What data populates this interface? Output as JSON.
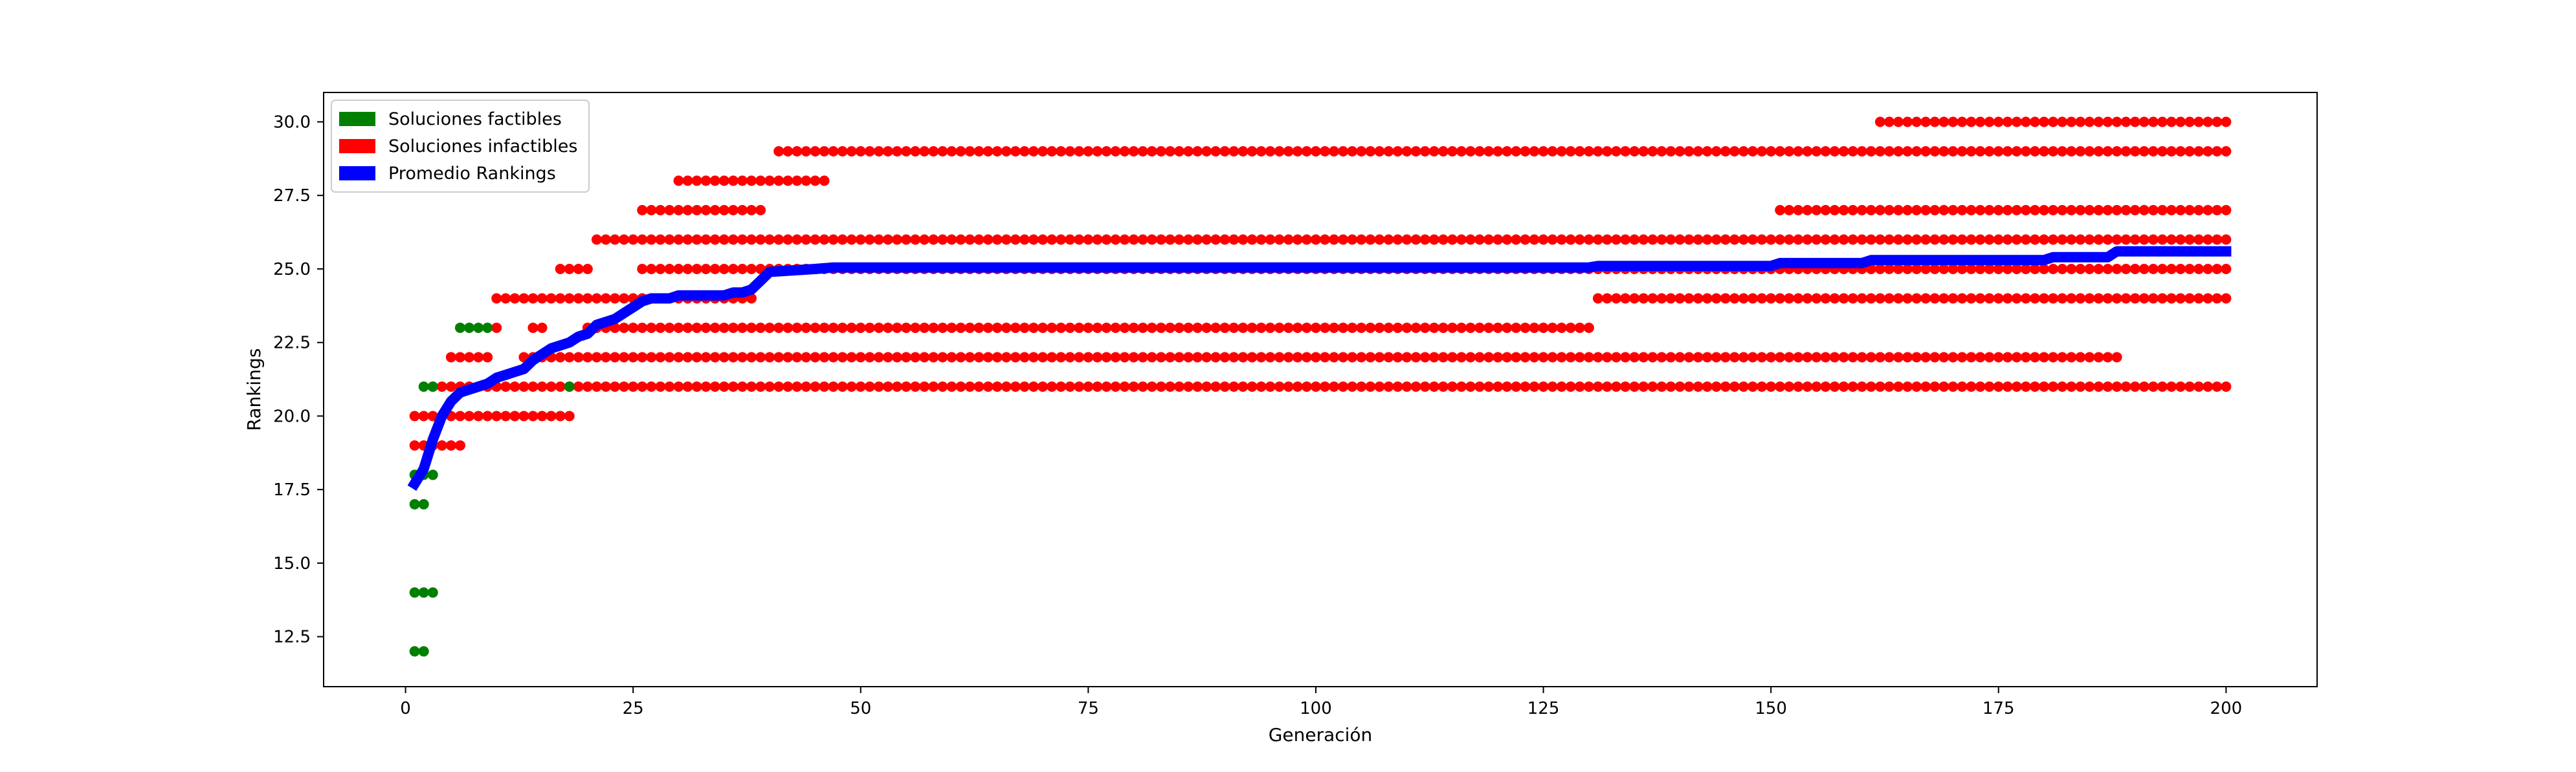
{
  "chart_data": {
    "type": "scatter",
    "xlabel": "Generación",
    "ylabel": "Rankings",
    "xlim": [
      -9,
      210
    ],
    "ylim": [
      10.8,
      31.0
    ],
    "xticks": [
      0,
      25,
      50,
      75,
      100,
      125,
      150,
      175,
      200
    ],
    "yticks": [
      12.5,
      15.0,
      17.5,
      20.0,
      22.5,
      25.0,
      27.5,
      30.0
    ],
    "grid": false,
    "legend_position": "top-left",
    "legend": [
      {
        "label": "Soluciones factibles",
        "color": "#008000"
      },
      {
        "label": "Soluciones infactibles",
        "color": "#ff0000"
      },
      {
        "label": "Promedio Rankings",
        "color": "#0000ff"
      }
    ],
    "series": [
      {
        "name": "Soluciones factibles",
        "color": "#008000",
        "points": [
          [
            1,
            12
          ],
          [
            2,
            12
          ],
          [
            1,
            14
          ],
          [
            2,
            14
          ],
          [
            3,
            14
          ],
          [
            1,
            17
          ],
          [
            2,
            17
          ],
          [
            1,
            18
          ],
          [
            2,
            18
          ],
          [
            3,
            18
          ],
          [
            2,
            21
          ],
          [
            3,
            21
          ],
          [
            18,
            21
          ],
          [
            6,
            23
          ],
          [
            7,
            23
          ],
          [
            8,
            23
          ],
          [
            9,
            23
          ]
        ]
      },
      {
        "name": "Soluciones infactibles",
        "color": "#ff0000",
        "ranges": [
          {
            "y": 19,
            "x_start": 1,
            "x_end": 6
          },
          {
            "y": 20,
            "x_start": 1,
            "x_end": 18
          },
          {
            "y": 21,
            "x_start": 3,
            "x_end": 200
          },
          {
            "y": 22,
            "x_start": 5,
            "x_end": 9
          },
          {
            "y": 22,
            "x_start": 13,
            "x_end": 188
          },
          {
            "y": 23,
            "x_start": 10,
            "x_end": 10
          },
          {
            "y": 23,
            "x_start": 14,
            "x_end": 15
          },
          {
            "y": 23,
            "x_start": 20,
            "x_end": 130
          },
          {
            "y": 24,
            "x_start": 10,
            "x_end": 38
          },
          {
            "y": 24,
            "x_start": 131,
            "x_end": 200
          },
          {
            "y": 25,
            "x_start": 17,
            "x_end": 20
          },
          {
            "y": 25,
            "x_start": 26,
            "x_end": 200
          },
          {
            "y": 26,
            "x_start": 21,
            "x_end": 200
          },
          {
            "y": 27,
            "x_start": 26,
            "x_end": 39
          },
          {
            "y": 27,
            "x_start": 151,
            "x_end": 200
          },
          {
            "y": 28,
            "x_start": 30,
            "x_end": 46
          },
          {
            "y": 29,
            "x_start": 41,
            "x_end": 200
          },
          {
            "y": 30,
            "x_start": 162,
            "x_end": 200
          }
        ]
      },
      {
        "name": "Promedio Rankings",
        "color": "#0000ff",
        "x": [
          1,
          2,
          3,
          4,
          5,
          6,
          7,
          8,
          9,
          10,
          11,
          12,
          13,
          14,
          15,
          16,
          17,
          18,
          19,
          20,
          21,
          22,
          23,
          24,
          25,
          26,
          27,
          28,
          29,
          30,
          35,
          36,
          37,
          38,
          39,
          40,
          45,
          47,
          100,
          130,
          131,
          150,
          151,
          160,
          161,
          180,
          181,
          187,
          188,
          200
        ],
        "y": [
          17.7,
          18.2,
          19.2,
          20.0,
          20.5,
          20.8,
          20.9,
          21.0,
          21.1,
          21.3,
          21.4,
          21.5,
          21.6,
          21.9,
          22.1,
          22.3,
          22.4,
          22.5,
          22.7,
          22.8,
          23.1,
          23.2,
          23.3,
          23.5,
          23.7,
          23.9,
          24.0,
          24.0,
          24.0,
          24.1,
          24.1,
          24.2,
          24.2,
          24.3,
          24.6,
          24.9,
          25.0,
          25.05,
          25.05,
          25.05,
          25.1,
          25.1,
          25.2,
          25.2,
          25.3,
          25.3,
          25.4,
          25.4,
          25.6,
          25.6
        ]
      }
    ]
  }
}
